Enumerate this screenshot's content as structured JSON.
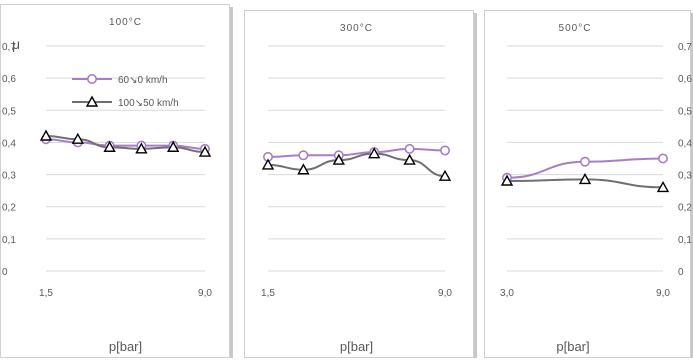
{
  "chart_data": {
    "type": "line",
    "y_axis_label": "μ",
    "y_ticks": [
      "0",
      "0,1",
      "0,2",
      "0,3",
      "0,4",
      "0,5",
      "0,6",
      "0,7"
    ],
    "ylim": [
      0,
      0.7
    ],
    "grid": true,
    "legend": {
      "placement": "inside first panel, upper area",
      "entries": [
        {
          "name": "60↘0 km/h",
          "color": "#a67ec8",
          "marker": "circle"
        },
        {
          "name": "100↘50 km/h",
          "color": "#707070",
          "marker": "triangle"
        }
      ]
    },
    "panels": [
      {
        "title": "100°C",
        "xlabel": "p[bar]",
        "x_ticks": [
          "1,5",
          "9,0"
        ],
        "xlim": [
          1.5,
          9.0
        ],
        "series": [
          {
            "name": "60↘0 km/h",
            "x": [
              1.5,
              3.0,
              4.5,
              6.0,
              7.5,
              9.0
            ],
            "y": [
              0.41,
              0.4,
              0.39,
              0.39,
              0.39,
              0.38
            ]
          },
          {
            "name": "100↘50 km/h",
            "x": [
              1.5,
              3.0,
              4.5,
              6.0,
              7.5,
              9.0
            ],
            "y": [
              0.42,
              0.41,
              0.385,
              0.38,
              0.385,
              0.37
            ]
          }
        ]
      },
      {
        "title": "300°C",
        "xlabel": "p[bar]",
        "x_ticks": [
          "1,5",
          "9,0"
        ],
        "xlim": [
          1.5,
          9.0
        ],
        "series": [
          {
            "name": "60↘0 km/h",
            "x": [
              1.5,
              3.0,
              4.5,
              6.0,
              7.5,
              9.0
            ],
            "y": [
              0.355,
              0.36,
              0.36,
              0.37,
              0.38,
              0.375
            ]
          },
          {
            "name": "100↘50 km/h",
            "x": [
              1.5,
              3.0,
              4.5,
              6.0,
              7.5,
              9.0
            ],
            "y": [
              0.33,
              0.315,
              0.345,
              0.365,
              0.345,
              0.295
            ]
          }
        ]
      },
      {
        "title": "500°C",
        "xlabel": "p[bar]",
        "x_ticks": [
          "3,0",
          "9,0"
        ],
        "xlim": [
          3.0,
          9.0
        ],
        "series": [
          {
            "name": "60↘0 km/h",
            "x": [
              3.0,
              6.0,
              9.0
            ],
            "y": [
              0.29,
              0.34,
              0.35
            ]
          },
          {
            "name": "100↘50 km/h",
            "x": [
              3.0,
              6.0,
              9.0
            ],
            "y": [
              0.28,
              0.285,
              0.26
            ]
          }
        ]
      }
    ]
  }
}
